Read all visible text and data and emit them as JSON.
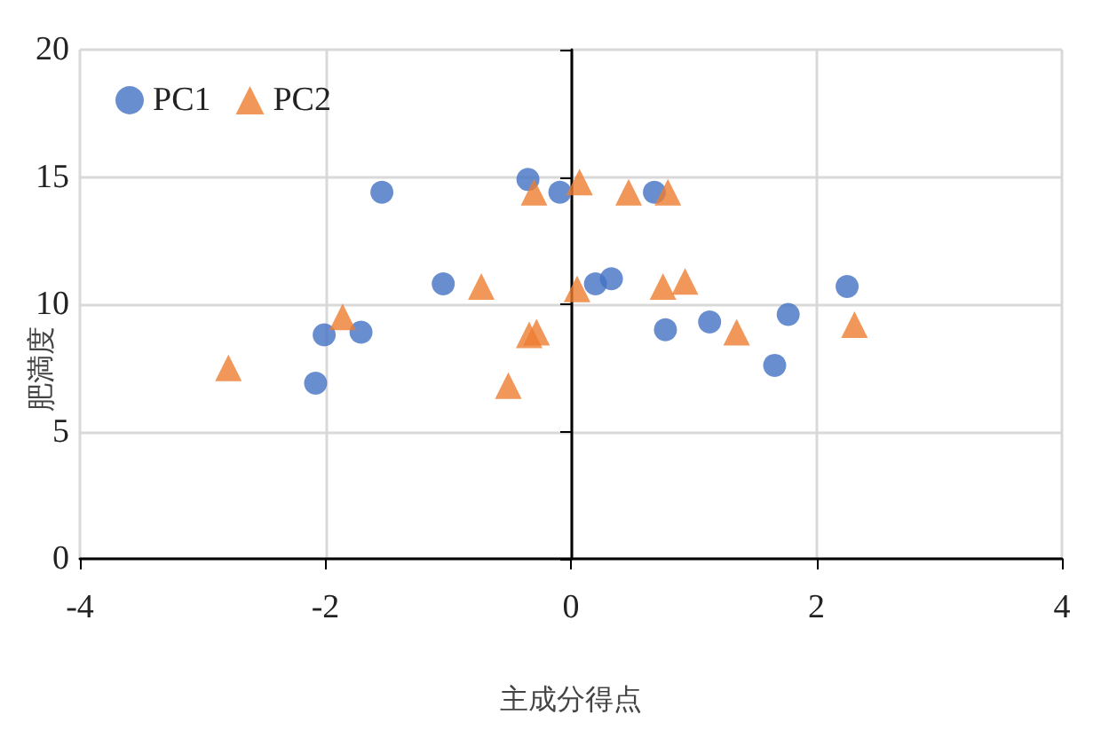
{
  "chart_data": {
    "type": "scatter",
    "xlabel": "主成分得点",
    "ylabel": "肥満度",
    "xlim": [
      -4,
      4
    ],
    "xticks": [
      -4,
      -2,
      0,
      2,
      4
    ],
    "ylim": [
      0,
      20
    ],
    "yticks": [
      0,
      5,
      10,
      15,
      20
    ],
    "grid": true,
    "legend": "top left",
    "series": [
      {
        "name": "PC1",
        "color": "#4472c4",
        "marker": "circle",
        "x": [
          -1.54,
          -1.04,
          -2.01,
          -1.71,
          -2.08,
          -0.35,
          -0.09,
          0.2,
          0.33,
          0.68,
          0.77,
          1.13,
          1.77,
          1.66,
          2.25
        ],
        "values": [
          14.4,
          10.8,
          8.8,
          8.9,
          6.9,
          14.9,
          14.4,
          10.8,
          11.0,
          14.4,
          9.0,
          9.3,
          9.6,
          7.6,
          10.7
        ]
      },
      {
        "name": "PC2",
        "color": "#ed7d31",
        "marker": "triangle",
        "x": [
          -2.79,
          -1.86,
          -0.73,
          -0.3,
          -0.34,
          -0.28,
          -0.51,
          0.07,
          0.05,
          0.47,
          0.79,
          0.75,
          0.93,
          1.35,
          2.31
        ],
        "values": [
          7.5,
          9.5,
          10.7,
          14.4,
          8.8,
          8.9,
          6.8,
          14.8,
          10.6,
          14.4,
          14.4,
          10.7,
          10.9,
          8.9,
          9.2
        ]
      }
    ]
  }
}
